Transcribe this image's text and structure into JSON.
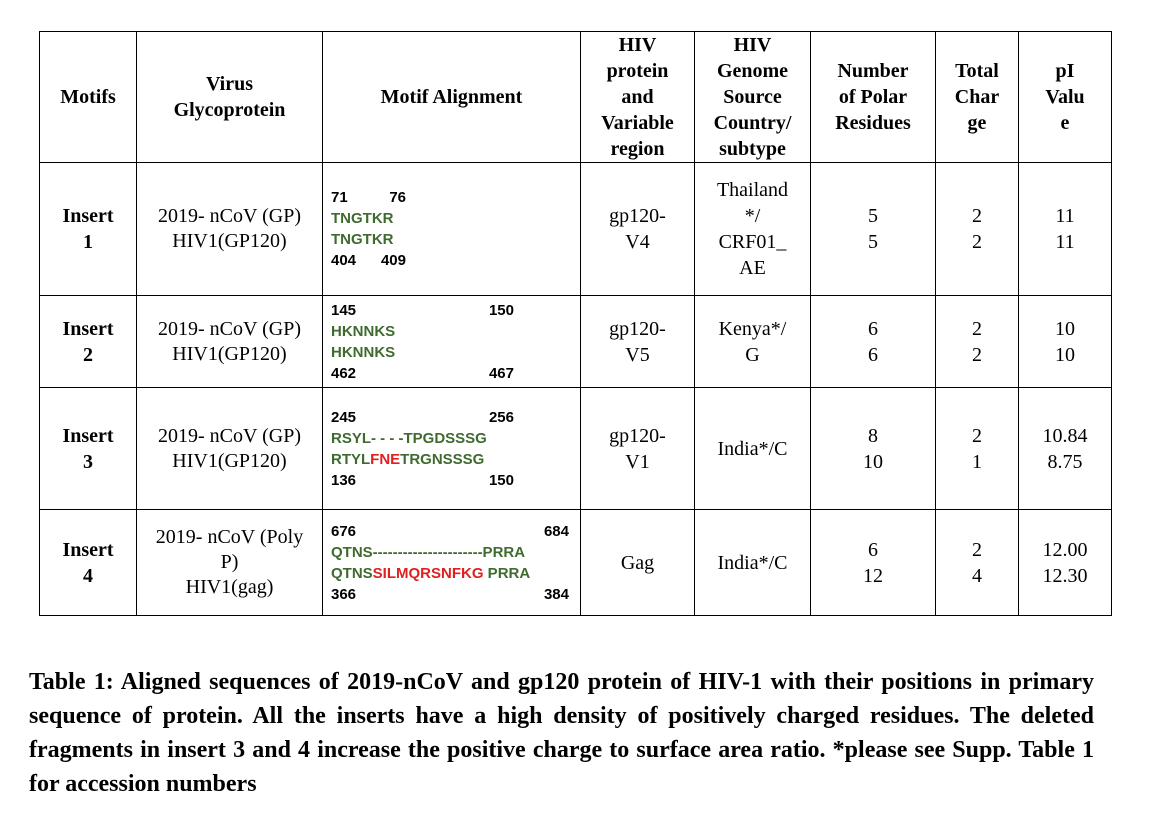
{
  "headers": {
    "motifs": "Motifs",
    "virus": [
      "Virus",
      "Glycoprotein"
    ],
    "alignment": "Motif Alignment",
    "hiv_protein": [
      "HIV",
      "protein",
      "and",
      "Variable",
      "region"
    ],
    "hiv_genome": [
      "HIV",
      "Genome",
      "Source",
      "Country/",
      "subtype"
    ],
    "polar": [
      "Number",
      "of Polar",
      "Residues"
    ],
    "charge": [
      "Total",
      "Char",
      "ge"
    ],
    "pi": [
      "pI",
      "Valu",
      "e"
    ]
  },
  "rows": [
    {
      "motif": [
        "Insert",
        "1"
      ],
      "virus": [
        "2019- nCoV (GP)",
        "HIV1(GP120)"
      ],
      "top_start": "71",
      "top_end": "76",
      "seq1": [
        {
          "t": "TNGTKR",
          "red": false
        }
      ],
      "seq2": [
        {
          "t": "TNGTKR",
          "red": false
        }
      ],
      "bot_start": "404",
      "bot_end": "409",
      "protein": [
        "gp120-",
        "V4"
      ],
      "genome": [
        "Thailand",
        "*/",
        "CRF01_",
        "AE"
      ],
      "polar": [
        "5",
        "5"
      ],
      "charge": [
        "2",
        "2"
      ],
      "pi": [
        "11",
        "11"
      ]
    },
    {
      "motif": [
        "Insert",
        "2"
      ],
      "virus": [
        "2019- nCoV (GP)",
        "HIV1(GP120)"
      ],
      "top_start": "145",
      "top_end": "150",
      "seq1": [
        {
          "t": "HKNNKS",
          "red": false
        }
      ],
      "seq2": [
        {
          "t": "HKNNKS",
          "red": false
        }
      ],
      "bot_start": "462",
      "bot_end": "467",
      "protein": [
        "gp120-",
        "V5"
      ],
      "genome": [
        "Kenya*/",
        "G"
      ],
      "polar": [
        "6",
        "6"
      ],
      "charge": [
        "2",
        "2"
      ],
      "pi": [
        "10",
        "10"
      ]
    },
    {
      "motif": [
        "Insert",
        "3"
      ],
      "virus": [
        "2019- nCoV (GP)",
        "HIV1(GP120)"
      ],
      "top_start": "245",
      "top_end": "256",
      "seq1": [
        {
          "t": "RSYL- - - -TPGDSSSG",
          "red": false
        }
      ],
      "seq2": [
        {
          "t": "RTYL",
          "red": false
        },
        {
          "t": "FNE",
          "red": true
        },
        {
          "t": "TRGNSSSG",
          "red": false
        }
      ],
      "bot_start": "136",
      "bot_end": "150",
      "protein": [
        "gp120-",
        "V1"
      ],
      "genome": [
        "India*/C"
      ],
      "polar": [
        "8",
        "10"
      ],
      "charge": [
        "2",
        "1"
      ],
      "pi": [
        "10.84",
        "8.75"
      ]
    },
    {
      "motif": [
        "Insert",
        "4"
      ],
      "virus": [
        "2019- nCoV (Poly",
        "P)",
        "HIV1(gag)"
      ],
      "top_start": "676",
      "top_end": "684",
      "seq1": [
        {
          "t": "QTNS----------------------PRRA",
          "red": false
        }
      ],
      "seq2": [
        {
          "t": "QTNS",
          "red": false
        },
        {
          "t": "SILMQRSNFKG",
          "red": true
        },
        {
          "t": " PRRA",
          "red": false
        }
      ],
      "bot_start": "366",
      "bot_end": "384",
      "protein": [
        "Gag"
      ],
      "genome": [
        "India*/C"
      ],
      "polar": [
        "6",
        "12"
      ],
      "charge": [
        "2",
        "4"
      ],
      "pi": [
        "12.00",
        "12.30"
      ]
    }
  ],
  "caption": "Table 1: Aligned sequences of 2019-nCoV and gp120 protein of HIV-1 with their positions in primary sequence of protein. All the inserts have a high density of positively charged residues. The deleted fragments in insert 3 and 4 increase the positive charge to surface area ratio. *please see Supp. Table 1 for accession numbers",
  "colors": {
    "sequence": "#3f6b2f",
    "highlight": "#e02020"
  }
}
